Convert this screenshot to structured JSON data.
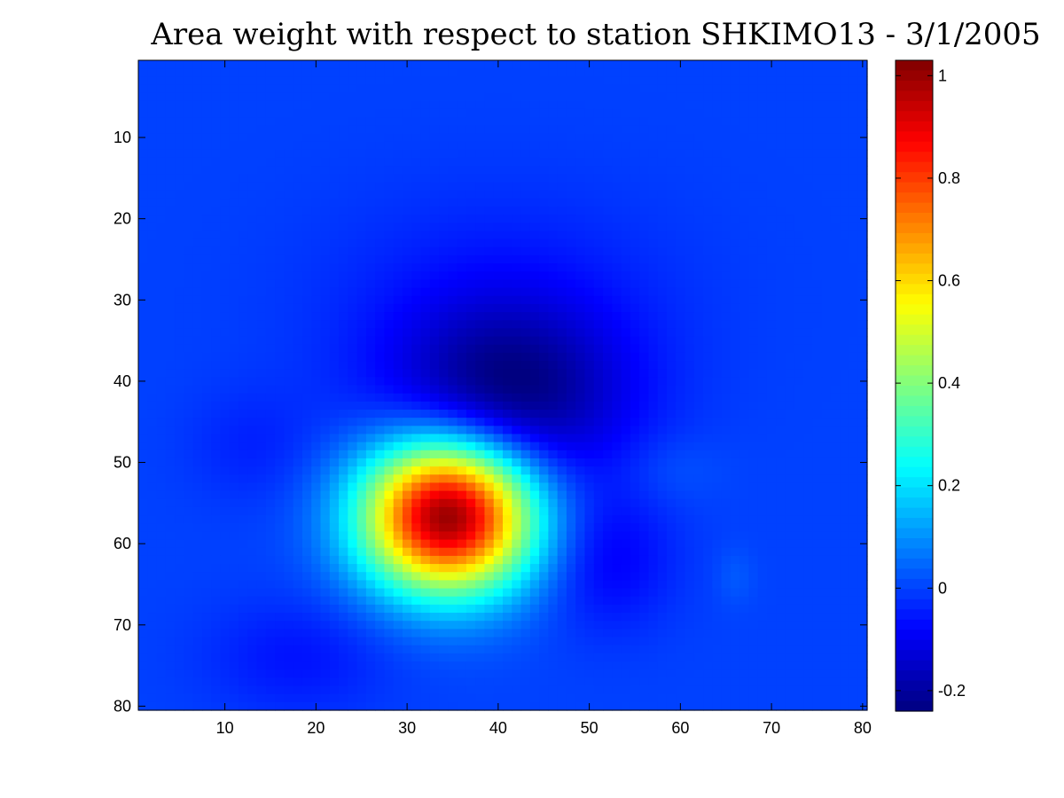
{
  "chart_data": {
    "type": "heatmap",
    "title": "Area weight with respect to station SHKIMO13 - 3/1/2005",
    "xlabel": "",
    "ylabel": "",
    "xlim": [
      0.5,
      80.5
    ],
    "ylim": [
      0.5,
      80.5
    ],
    "y_reversed": true,
    "grid": false,
    "colormap": "jet",
    "x_ticks": [
      10,
      20,
      30,
      40,
      50,
      60,
      70,
      80
    ],
    "y_ticks": [
      10,
      20,
      30,
      40,
      50,
      60,
      70,
      80
    ],
    "x_tick_labels": [
      "10",
      "20",
      "30",
      "40",
      "50",
      "60",
      "70",
      "80"
    ],
    "y_tick_labels": [
      "10",
      "20",
      "30",
      "40",
      "50",
      "60",
      "70",
      "80"
    ],
    "grid_size": [
      80,
      80
    ],
    "background_value": 0,
    "components": [
      {
        "name": "positive-peak",
        "x": 34.5,
        "y": 56.5,
        "sigma_x": 6.5,
        "sigma_y": 6.5,
        "amplitude": 1.03
      },
      {
        "name": "negative-trough",
        "x": 41,
        "y": 42,
        "sigma_x": 9,
        "sigma_y": 8,
        "amplitude": -0.24
      },
      {
        "name": "negative-lobe-right",
        "x": 52,
        "y": 62,
        "sigma_x": 5,
        "sigma_y": 6,
        "amplitude": -0.09
      },
      {
        "name": "negative-lobe-upper",
        "x": 40,
        "y": 30,
        "sigma_x": 14,
        "sigma_y": 10,
        "amplitude": -0.05
      },
      {
        "name": "negative-lobe-bottom-left",
        "x": 18,
        "y": 74,
        "sigma_x": 7,
        "sigma_y": 5,
        "amplitude": -0.06
      },
      {
        "name": "negative-lobe-left",
        "x": 13,
        "y": 48,
        "sigma_x": 5,
        "sigma_y": 5,
        "amplitude": -0.04
      },
      {
        "name": "positive-bump-right",
        "x": 59,
        "y": 51,
        "sigma_x": 4,
        "sigma_y": 3,
        "amplitude": 0.03
      },
      {
        "name": "positive-bump-far-right",
        "x": 66,
        "y": 64,
        "sigma_x": 1.5,
        "sigma_y": 2.5,
        "amplitude": 0.03
      }
    ],
    "colorbar": {
      "min": -0.24,
      "max": 1.03,
      "ticks": [
        -0.2,
        0,
        0.2,
        0.4,
        0.6,
        0.8,
        1
      ],
      "tick_labels": [
        "-0.2",
        "0",
        "0.2",
        "0.4",
        "0.6",
        "0.8",
        "1"
      ]
    }
  }
}
